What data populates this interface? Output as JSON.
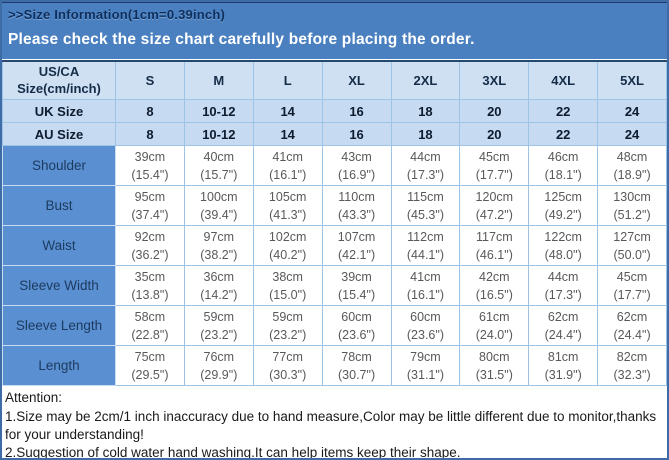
{
  "banner": {
    "title": ">>Size Information(1cm=0.39inch)",
    "subtitle": "Please check the size chart carefully before placing the order."
  },
  "colors": {
    "banner_bg": "#4a80c0",
    "title_text": "#0e2f5d",
    "subtitle_text": "#ffffff",
    "header_row_bg": "#cfe0f3",
    "size_row_bg": "#c6daf1",
    "measure_label_bg": "#5a90d2",
    "grid_line": "#9dc3e6",
    "data_text": "#595959"
  },
  "table": {
    "corner": {
      "line1": "US/CA",
      "line2": "Size(cm/inch)"
    },
    "sizes": [
      "S",
      "M",
      "L",
      "XL",
      "2XL",
      "3XL",
      "4XL",
      "5XL"
    ],
    "size_rows": [
      {
        "label": "UK Size",
        "values": [
          "8",
          "10-12",
          "14",
          "16",
          "18",
          "20",
          "22",
          "24"
        ]
      },
      {
        "label": "AU Size",
        "values": [
          "8",
          "10-12",
          "14",
          "16",
          "18",
          "20",
          "22",
          "24"
        ]
      }
    ],
    "measure_rows": [
      {
        "label": "Shoulder",
        "cells": [
          {
            "cm": "39cm",
            "inch": "(15.4\")"
          },
          {
            "cm": "40cm",
            "inch": "(15.7\")"
          },
          {
            "cm": "41cm",
            "inch": "(16.1\")"
          },
          {
            "cm": "43cm",
            "inch": "(16.9\")"
          },
          {
            "cm": "44cm",
            "inch": "(17.3\")"
          },
          {
            "cm": "45cm",
            "inch": "(17.7\")"
          },
          {
            "cm": "46cm",
            "inch": "(18.1\")"
          },
          {
            "cm": "48cm",
            "inch": "(18.9\")"
          }
        ]
      },
      {
        "label": "Bust",
        "cells": [
          {
            "cm": "95cm",
            "inch": "(37.4\")"
          },
          {
            "cm": "100cm",
            "inch": "(39.4\")"
          },
          {
            "cm": "105cm",
            "inch": "(41.3\")"
          },
          {
            "cm": "110cm",
            "inch": "(43.3\")"
          },
          {
            "cm": "115cm",
            "inch": "(45.3\")"
          },
          {
            "cm": "120cm",
            "inch": "(47.2\")"
          },
          {
            "cm": "125cm",
            "inch": "(49.2\")"
          },
          {
            "cm": "130cm",
            "inch": "(51.2\")"
          }
        ]
      },
      {
        "label": "Waist",
        "cells": [
          {
            "cm": "92cm",
            "inch": "(36.2\")"
          },
          {
            "cm": "97cm",
            "inch": "(38.2\")"
          },
          {
            "cm": "102cm",
            "inch": "(40.2\")"
          },
          {
            "cm": "107cm",
            "inch": "(42.1\")"
          },
          {
            "cm": "112cm",
            "inch": "(44.1\")"
          },
          {
            "cm": "117cm",
            "inch": "(46.1\")"
          },
          {
            "cm": "122cm",
            "inch": "(48.0\")"
          },
          {
            "cm": "127cm",
            "inch": "(50.0\")"
          }
        ]
      },
      {
        "label": "Sleeve Width",
        "cells": [
          {
            "cm": "35cm",
            "inch": "(13.8\")"
          },
          {
            "cm": "36cm",
            "inch": "(14.2\")"
          },
          {
            "cm": "38cm",
            "inch": "(15.0\")"
          },
          {
            "cm": "39cm",
            "inch": "(15.4\")"
          },
          {
            "cm": "41cm",
            "inch": "(16.1\")"
          },
          {
            "cm": "42cm",
            "inch": "(16.5\")"
          },
          {
            "cm": "44cm",
            "inch": "(17.3\")"
          },
          {
            "cm": "45cm",
            "inch": "(17.7\")"
          }
        ]
      },
      {
        "label": "Sleeve Length",
        "cells": [
          {
            "cm": "58cm",
            "inch": "(22.8\")"
          },
          {
            "cm": "59cm",
            "inch": "(23.2\")"
          },
          {
            "cm": "59cm",
            "inch": "(23.2\")"
          },
          {
            "cm": "60cm",
            "inch": "(23.6\")"
          },
          {
            "cm": "60cm",
            "inch": "(23.6\")"
          },
          {
            "cm": "61cm",
            "inch": "(24.0\")"
          },
          {
            "cm": "62cm",
            "inch": "(24.4\")"
          },
          {
            "cm": "62cm",
            "inch": "(24.4\")"
          }
        ]
      },
      {
        "label": "Length",
        "cells": [
          {
            "cm": "75cm",
            "inch": "(29.5\")"
          },
          {
            "cm": "76cm",
            "inch": "(29.9\")"
          },
          {
            "cm": "77cm",
            "inch": "(30.3\")"
          },
          {
            "cm": "78cm",
            "inch": "(30.7\")"
          },
          {
            "cm": "79cm",
            "inch": "(31.1\")"
          },
          {
            "cm": "80cm",
            "inch": "(31.5\")"
          },
          {
            "cm": "81cm",
            "inch": "(31.9\")"
          },
          {
            "cm": "82cm",
            "inch": "(32.3\")"
          }
        ]
      }
    ]
  },
  "attention": {
    "heading": "Attention:",
    "lines": [
      "1.Size may be 2cm/1 inch inaccuracy due to hand measure,Color may be little different due to monitor,thanks for your understanding!",
      "2.Suggestion of cold water hand washing.It can help items keep their shape."
    ]
  }
}
